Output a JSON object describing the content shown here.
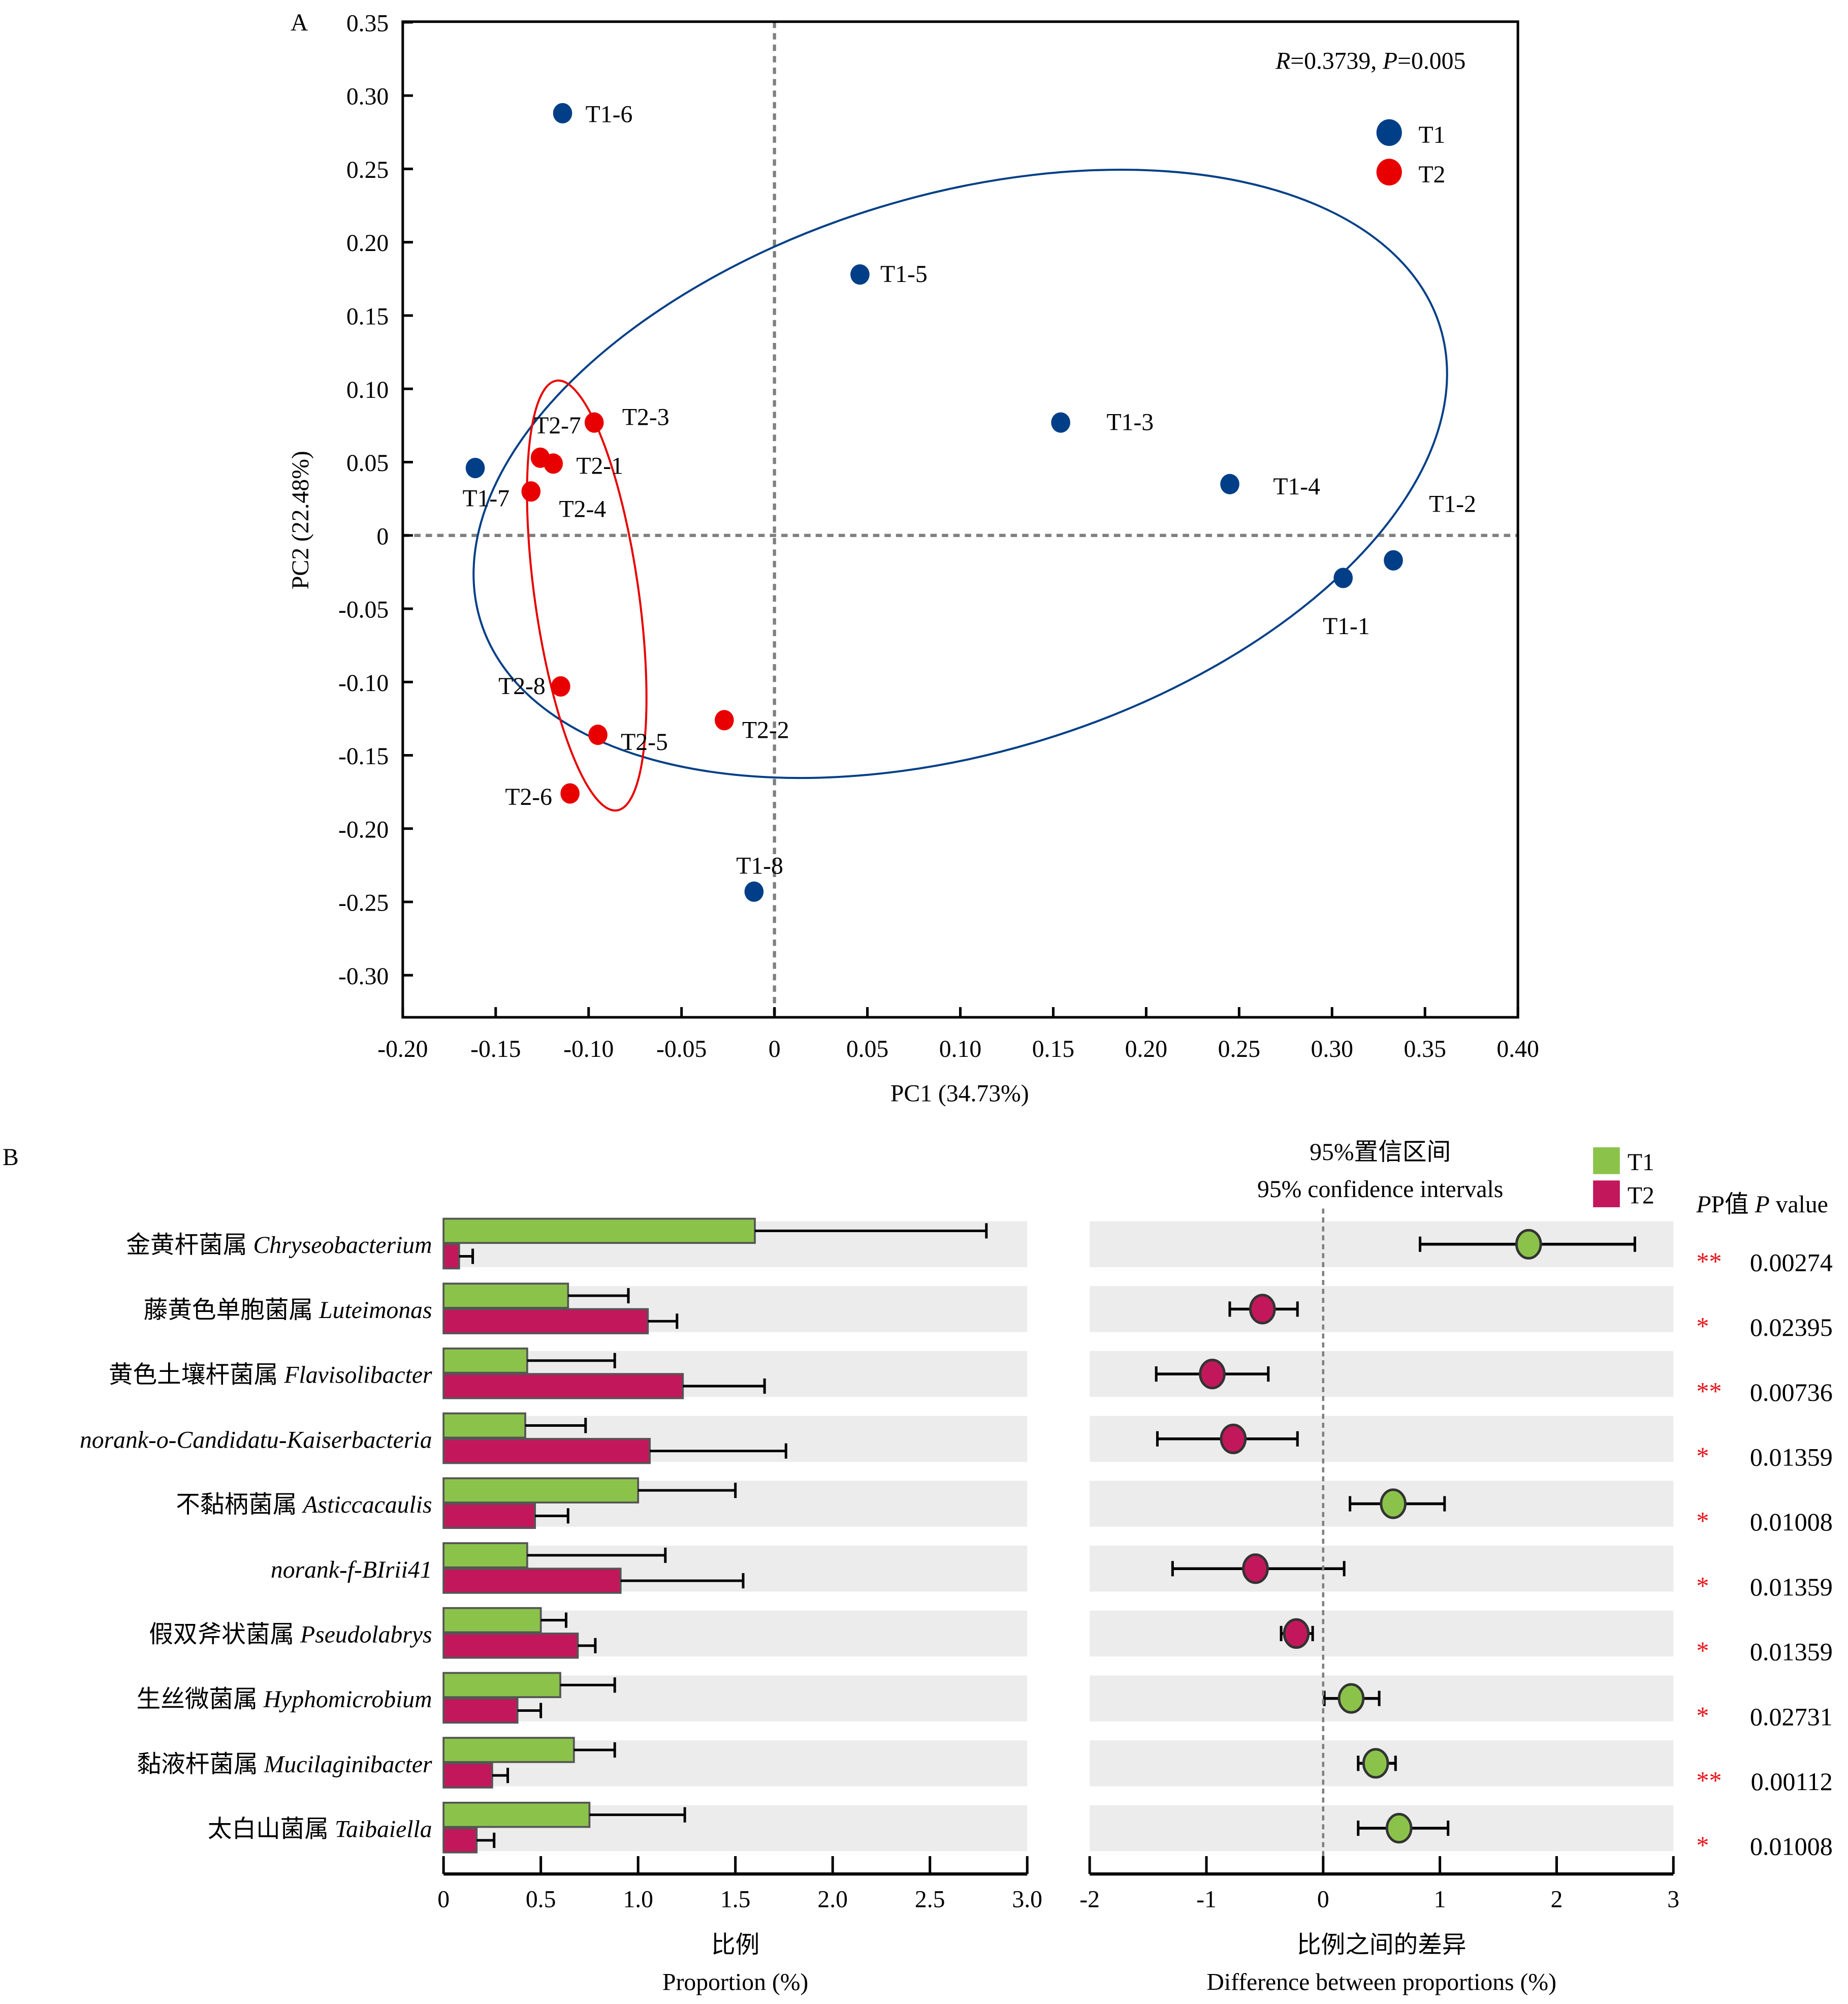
{
  "chart_data": [
    {
      "panel": "A",
      "type": "scatter",
      "title": "",
      "annotation": {
        "R_label": "R",
        "R_value": "=0.3739, ",
        "P_label": "P",
        "P_value": "=0.005"
      },
      "xlabel": "PC1 (34.73%)",
      "ylabel": "PC2 (22.48%)",
      "xlim": [
        -0.2,
        0.4
      ],
      "ylim": [
        -0.33,
        0.35
      ],
      "xticks": [
        "-0.20",
        "-0.15",
        "-0.10",
        "-0.05",
        "0",
        "0.05",
        "0.10",
        "0.15",
        "0.20",
        "0.25",
        "0.30",
        "0.35",
        "0.40"
      ],
      "yticks": [
        "0.35",
        "0.30",
        "0.25",
        "0.20",
        "0.15",
        "0.10",
        "0.05",
        "0",
        "-0.05",
        "-0.10",
        "-0.15",
        "-0.20",
        "-0.25",
        "-0.30"
      ],
      "reference_lines": {
        "x": 0,
        "y": 0,
        "style": "dashed"
      },
      "legend": {
        "placement": "top-right",
        "entries": [
          {
            "name": "T1",
            "color": "#003f87"
          },
          {
            "name": "T2",
            "color": "#e80000"
          }
        ]
      },
      "series": [
        {
          "name": "T1",
          "color": "#003f87",
          "points": [
            {
              "label": "T1-1",
              "x": 0.306,
              "y": -0.029
            },
            {
              "label": "T1-2",
              "x": 0.333,
              "y": -0.017
            },
            {
              "label": "T1-3",
              "x": 0.154,
              "y": 0.077
            },
            {
              "label": "T1-4",
              "x": 0.245,
              "y": 0.035
            },
            {
              "label": "T1-5",
              "x": 0.046,
              "y": 0.178
            },
            {
              "label": "T1-6",
              "x": -0.114,
              "y": 0.288
            },
            {
              "label": "T1-7",
              "x": -0.161,
              "y": 0.046
            },
            {
              "label": "T1-8",
              "x": -0.011,
              "y": -0.243
            }
          ]
        },
        {
          "name": "T2",
          "color": "#e80000",
          "points": [
            {
              "label": "T2-1",
              "x": -0.119,
              "y": 0.049
            },
            {
              "label": "T2-2",
              "x": -0.027,
              "y": -0.126
            },
            {
              "label": "T2-3",
              "x": -0.097,
              "y": 0.077
            },
            {
              "label": "T2-4",
              "x": -0.131,
              "y": 0.03
            },
            {
              "label": "T2-5",
              "x": -0.095,
              "y": -0.136
            },
            {
              "label": "T2-6",
              "x": -0.11,
              "y": -0.176
            },
            {
              "label": "T2-7",
              "x": -0.126,
              "y": 0.053
            },
            {
              "label": "T2-8",
              "x": -0.115,
              "y": -0.103
            }
          ]
        }
      ],
      "ellipses": [
        {
          "group": "T1",
          "color": "#003f87",
          "center": [
            0.1,
            0.042
          ],
          "semi_axes": [
            0.27,
            0.19
          ],
          "rotation_deg": -17
        },
        {
          "group": "T2",
          "color": "#e80000",
          "center": [
            -0.101,
            -0.041
          ],
          "semi_axes": [
            0.028,
            0.148
          ],
          "rotation_deg": -8
        }
      ]
    },
    {
      "panel": "B-left",
      "type": "bar",
      "orientation": "horizontal",
      "xlabel_cn": "比例",
      "xlabel": "Proportion (%)",
      "xlim": [
        0,
        3.0
      ],
      "xticks": [
        "0",
        "0.5",
        "1.0",
        "1.5",
        "2.0",
        "2.5",
        "3.0"
      ],
      "categories": [
        {
          "cn": "金黄杆菌属 ",
          "latin": "Chryseobacterium"
        },
        {
          "cn": "藤黄色单胞菌属 ",
          "latin": "Luteimonas"
        },
        {
          "cn": "黄色土壤杆菌属 ",
          "latin": "Flavisolibacter"
        },
        {
          "cn": "",
          "latin": "norank-o-Candidatu-Kaiserbacteria"
        },
        {
          "cn": "不黏柄菌属 ",
          "latin": "Asticcacaulis"
        },
        {
          "cn": "",
          "latin": "norank-f-BIrii41"
        },
        {
          "cn": "假双斧状菌属 ",
          "latin": "Pseudolabrys"
        },
        {
          "cn": "生丝微菌属 ",
          "latin": "Hyphomicrobium"
        },
        {
          "cn": "黏液杆菌属 ",
          "latin": "Mucilaginibacter"
        },
        {
          "cn": "太白山菌属 ",
          "latin": "Taibaiella"
        }
      ],
      "series": [
        {
          "name": "T1",
          "color": "#8bc34a",
          "values": [
            1.6,
            0.64,
            0.43,
            0.42,
            1.0,
            0.43,
            0.5,
            0.6,
            0.67,
            0.75
          ],
          "error_upper": [
            2.79,
            0.95,
            0.88,
            0.73,
            1.5,
            1.14,
            0.63,
            0.88,
            0.88,
            1.24
          ]
        },
        {
          "name": "T2",
          "color": "#c2185b",
          "values": [
            0.08,
            1.05,
            1.23,
            1.06,
            0.47,
            0.91,
            0.69,
            0.38,
            0.25,
            0.17
          ],
          "error_upper": [
            0.15,
            1.2,
            1.65,
            1.76,
            0.64,
            1.54,
            0.78,
            0.5,
            0.33,
            0.26
          ]
        }
      ]
    },
    {
      "panel": "B-right",
      "type": "scatter",
      "title_cn": "95%置信区间",
      "title": "95% confidence intervals",
      "xlabel_cn": "比例之间的差异",
      "xlabel": "Difference between proportions (%)",
      "xlim": [
        -2,
        3
      ],
      "xticks": [
        "-2",
        "-1",
        "0",
        "1",
        "2",
        "3"
      ],
      "legend": {
        "placement": "top-right",
        "entries": [
          {
            "name": "T1",
            "color": "#8bc34a"
          },
          {
            "name": "T2",
            "color": "#c2185b"
          }
        ]
      },
      "pvalue_header_cn": "P值 ",
      "pvalue_header": "P value",
      "points": [
        {
          "diff": 1.76,
          "ci": [
            0.83,
            2.67
          ],
          "group": "T1",
          "stars": "**",
          "p": "0.00274"
        },
        {
          "diff": -0.52,
          "ci": [
            -0.8,
            -0.22
          ],
          "group": "T2",
          "stars": "*",
          "p": "0.02395"
        },
        {
          "diff": -0.95,
          "ci": [
            -1.43,
            -0.47
          ],
          "group": "T2",
          "stars": "**",
          "p": "0.00736"
        },
        {
          "diff": -0.77,
          "ci": [
            -1.42,
            -0.22
          ],
          "group": "T2",
          "stars": "*",
          "p": "0.01359"
        },
        {
          "diff": 0.6,
          "ci": [
            0.23,
            1.04
          ],
          "group": "T1",
          "stars": "*",
          "p": "0.01008"
        },
        {
          "diff": -0.58,
          "ci": [
            -1.29,
            0.18
          ],
          "group": "T2",
          "stars": "*",
          "p": "0.01359"
        },
        {
          "diff": -0.23,
          "ci": [
            -0.36,
            -0.09
          ],
          "group": "T2",
          "stars": "*",
          "p": "0.01359"
        },
        {
          "diff": 0.24,
          "ci": [
            0.01,
            0.48
          ],
          "group": "T1",
          "stars": "*",
          "p": "0.02731"
        },
        {
          "diff": 0.45,
          "ci": [
            0.3,
            0.62
          ],
          "group": "T1",
          "stars": "**",
          "p": "0.00112"
        },
        {
          "diff": 0.65,
          "ci": [
            0.3,
            1.07
          ],
          "group": "T1",
          "stars": "*",
          "p": "0.01008"
        }
      ]
    }
  ],
  "panel_labels": {
    "a": "A",
    "b": "B"
  }
}
